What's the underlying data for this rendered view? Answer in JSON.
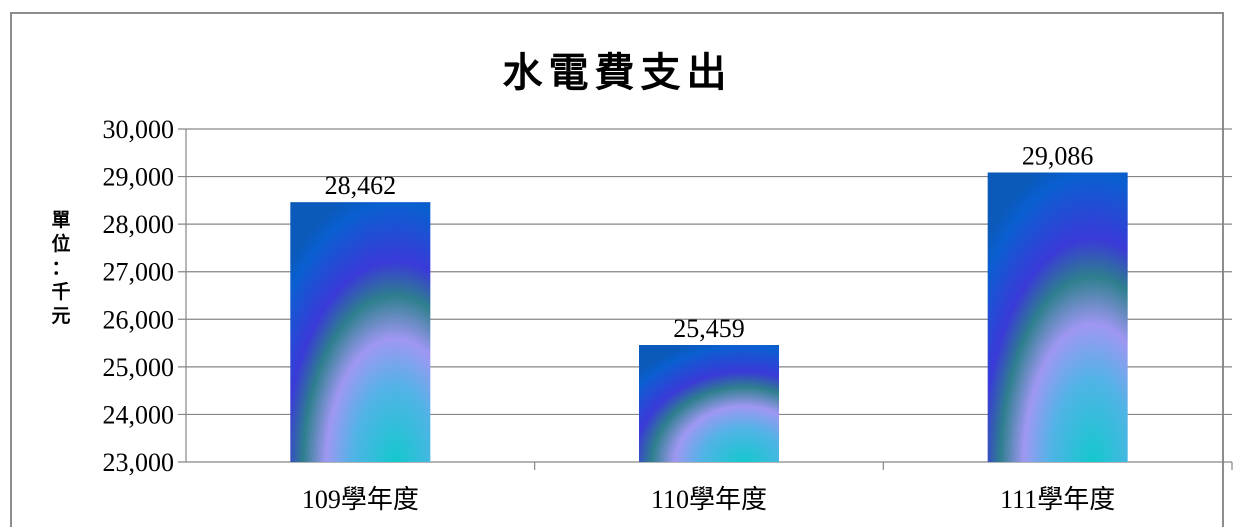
{
  "chart_data": {
    "type": "bar",
    "title": "水電費支出",
    "ylabel": "單位：千元",
    "ylabel_chars": [
      "單",
      "位",
      "：",
      "千",
      "元"
    ],
    "xlabel": "",
    "categories": [
      "109學年度",
      "110學年度",
      "111學年度"
    ],
    "values": [
      28462,
      25459,
      29086
    ],
    "data_labels": [
      "28,462",
      "25,459",
      "29,086"
    ],
    "ylim": [
      23000,
      30000
    ],
    "yticks": [
      23000,
      24000,
      25000,
      26000,
      27000,
      28000,
      29000,
      30000
    ],
    "ytick_labels": [
      "23,000",
      "24,000",
      "25,000",
      "26,000",
      "27,000",
      "28,000",
      "29,000",
      "30,000"
    ],
    "grid": true,
    "legend": "none",
    "bar_fill": "gradient",
    "colors": {
      "bar_top": "#0a5fd0",
      "bar_band_dark": "#3a3ad8",
      "bar_band_teal": "#2e7f8e",
      "bar_band_lilac": "#9f97f2",
      "bar_bottom": "#10c9cc",
      "gridline": "#868686",
      "frame": "#8c8c8c"
    }
  }
}
